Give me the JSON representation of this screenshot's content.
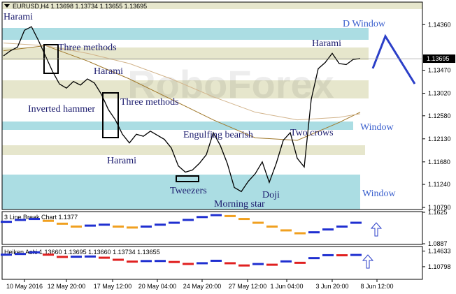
{
  "chart_data": {
    "type": "line",
    "title": "EURUSD,H4  1.13698 1.13734 1.13655 1.13695",
    "watermark": "RoboForex",
    "color": "#000000",
    "values": [
      1.1375,
      1.1385,
      1.1392,
      1.1425,
      1.1432,
      1.1405,
      1.1375,
      1.1345,
      1.132,
      1.1312,
      1.1325,
      1.1318,
      1.133,
      1.1322,
      1.13,
      1.127,
      1.125,
      1.1222,
      1.1205,
      1.1222,
      1.1218,
      1.1228,
      1.122,
      1.1212,
      1.1195,
      1.116,
      1.1148,
      1.1152,
      1.1165,
      1.1182,
      1.1225,
      1.12,
      1.1165,
      1.1118,
      1.111,
      1.113,
      1.1145,
      1.1168,
      1.1128,
      1.1165,
      1.121,
      1.1225,
      1.1175,
      1.1158,
      1.129,
      1.135,
      1.1362,
      1.138,
      1.136,
      1.1358,
      1.1368,
      1.137
    ],
    "moving_averages": [
      {
        "color": "#a0782a",
        "x": [
          0,
          6,
          12,
          18,
          24,
          30,
          36,
          42,
          48,
          51
        ],
        "values": [
          1.1385,
          1.1395,
          1.1365,
          1.133,
          1.129,
          1.125,
          1.1215,
          1.121,
          1.1245,
          1.1265
        ]
      },
      {
        "color": "#d2b48c",
        "x": [
          0,
          6,
          12,
          18,
          24,
          30,
          36,
          42,
          48,
          51
        ],
        "values": [
          1.14,
          1.1395,
          1.138,
          1.136,
          1.133,
          1.1295,
          1.1265,
          1.125,
          1.1255,
          1.1262
        ]
      }
    ],
    "ylim": [
      1.1075,
      1.148
    ],
    "yticks": [
      {
        "value": 1.1436,
        "label": "1.14360"
      },
      {
        "value": 1.1347,
        "label": "1.13470"
      },
      {
        "value": 1.1302,
        "label": "1.13020"
      },
      {
        "value": 1.1258,
        "label": "1.12580"
      },
      {
        "value": 1.1213,
        "label": "1.12130"
      },
      {
        "value": 1.1168,
        "label": "1.11680"
      },
      {
        "value": 1.1124,
        "label": "1.11240"
      },
      {
        "value": 1.1079,
        "label": "1.10790"
      }
    ],
    "current_price": {
      "value": 1.13695,
      "label": "1.13695"
    },
    "xticks": [
      {
        "value": 3,
        "label": "10 May 2016"
      },
      {
        "value": 9,
        "label": "12 May 20:00"
      },
      {
        "value": 15.6,
        "label": "17 May 12:00"
      },
      {
        "value": 22,
        "label": "20 May 04:00"
      },
      {
        "value": 28.4,
        "label": "24 May 20:00"
      },
      {
        "value": 34.9,
        "label": "27 May 12:00"
      },
      {
        "value": 40.5,
        "label": "1 Jun 04:00"
      },
      {
        "value": 47,
        "label": "3 Jun 20:00"
      },
      {
        "value": 53.4,
        "label": "8 Jun 12:00"
      }
    ],
    "annotations": [
      "Harami",
      "Three methods",
      "Harami",
      "Inverted hammer",
      "Three methods",
      "Harami",
      "Engulfing bearish",
      "Two crows",
      "Tweezers",
      "Morning star",
      "Doji",
      "Harami",
      "D Window",
      "Window",
      "Window"
    ],
    "line_break": {
      "title": "3 Line Break Chart 1.1377",
      "up_color": "#1f2fd0",
      "down_color": "#f0a020",
      "values": [
        1.1401,
        1.1446,
        1.1468,
        1.1424,
        1.1357,
        1.129,
        1.1312,
        1.1334,
        1.129,
        1.1267,
        1.129,
        1.1334,
        1.1379,
        1.1446,
        1.1513,
        1.1558,
        1.1536,
        1.1468,
        1.1379,
        1.129,
        1.12,
        1.1133,
        1.1155,
        1.1222,
        1.129,
        1.1379
      ],
      "ylim": [
        1.0871,
        1.1641
      ],
      "yticks": [
        1.1625,
        1.0887
      ]
    },
    "heiken_ashi": {
      "title": "Heiken Ashi 1.13660 1.13695 1.13660 1.13734 1.13655",
      "up_color": "#1f2fd0",
      "down_color": "#e02020",
      "values": [
        1.1375,
        1.1392,
        1.1432,
        1.1375,
        1.132,
        1.1325,
        1.133,
        1.13,
        1.125,
        1.1205,
        1.1218,
        1.122,
        1.1195,
        1.1148,
        1.1165,
        1.1225,
        1.1165,
        1.111,
        1.1145,
        1.1128,
        1.121,
        1.1175,
        1.129,
        1.1362,
        1.136,
        1.1368
      ],
      "ylim": [
        1.077,
        1.1575
      ],
      "yticks": [
        1.14633,
        1.10798
      ]
    }
  }
}
